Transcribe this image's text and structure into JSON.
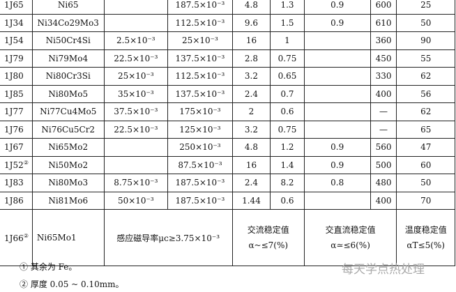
{
  "rows": [
    [
      "1J65",
      "Ni65",
      "",
      "187.5×10⁻³",
      "4.8",
      "1.3",
      "0.9",
      "600",
      "25"
    ],
    [
      "1J34",
      "Ni34Co29Mo3",
      "",
      "112.5×10⁻³",
      "9.6",
      "1.5",
      "0.9",
      "610",
      "50"
    ],
    [
      "1J54",
      "Ni50Cr4Si",
      "2.5×10⁻³",
      "25×10⁻³",
      "16",
      "1",
      "",
      "360",
      "90"
    ],
    [
      "1J79",
      "Ni79Mo4",
      "22.5×10⁻³",
      "137.5×10⁻³",
      "2.8",
      "0.75",
      "",
      "450",
      "55"
    ],
    [
      "1J80",
      "Ni80Cr3Si",
      "25×10⁻³",
      "112.5×10⁻³",
      "3.2",
      "0.65",
      "",
      "330",
      "62"
    ],
    [
      "1J85",
      "Ni80Mo5",
      "35×10⁻³",
      "137.5×10⁻³",
      "2.4",
      "0.7",
      "",
      "400",
      "56"
    ],
    [
      "1J77",
      "Ni77Cu4Mo5",
      "37.5×10⁻³",
      "175×10⁻³",
      "2",
      "0.6",
      "",
      "—",
      "62"
    ],
    [
      "1J76",
      "Ni76Cu5Cr2",
      "22.5×10⁻³",
      "125×10⁻³",
      "3.2",
      "0.75",
      "",
      "—",
      "65"
    ],
    [
      "1J67",
      "Ni65Mo2",
      "",
      "250×10⁻³",
      "4.8",
      "1.2",
      "0.9",
      "560",
      "47"
    ],
    [
      "1J52",
      "Ni50Mo2",
      "",
      "87.5×10⁻³",
      "16",
      "1.4",
      "0.9",
      "500",
      "60"
    ],
    [
      "1J83",
      "Ni80Mo3",
      "8.75×10⁻³",
      "187.5×10⁻³",
      "2.4",
      "8.2",
      "0.8",
      "480",
      "50"
    ],
    [
      "1J86",
      "Ni81Mo6",
      "50×10⁻³",
      "187.5×10⁻³",
      "1.44",
      "0.6",
      "",
      "400",
      "70"
    ]
  ],
  "row_1J52_note": "②",
  "last_row": {
    "grade": "1J66",
    "note": "②",
    "alloy": "Ni65Mo1",
    "permeability": "感应磁导率μc≥3.75×10⁻³",
    "ac_title": "交流稳定值",
    "ac_value": "α~≤7(%)",
    "acdc_title": "交直流稳定值",
    "acdc_value": "α≃≤6(%)",
    "temp_title": "温度稳定值",
    "temp_value": "αT≤5(%)"
  },
  "footnotes": [
    "①  其余为 Fe。",
    "②  厚度 0.05 ~ 0.10mm。"
  ],
  "watermark": "每天学点热处理"
}
